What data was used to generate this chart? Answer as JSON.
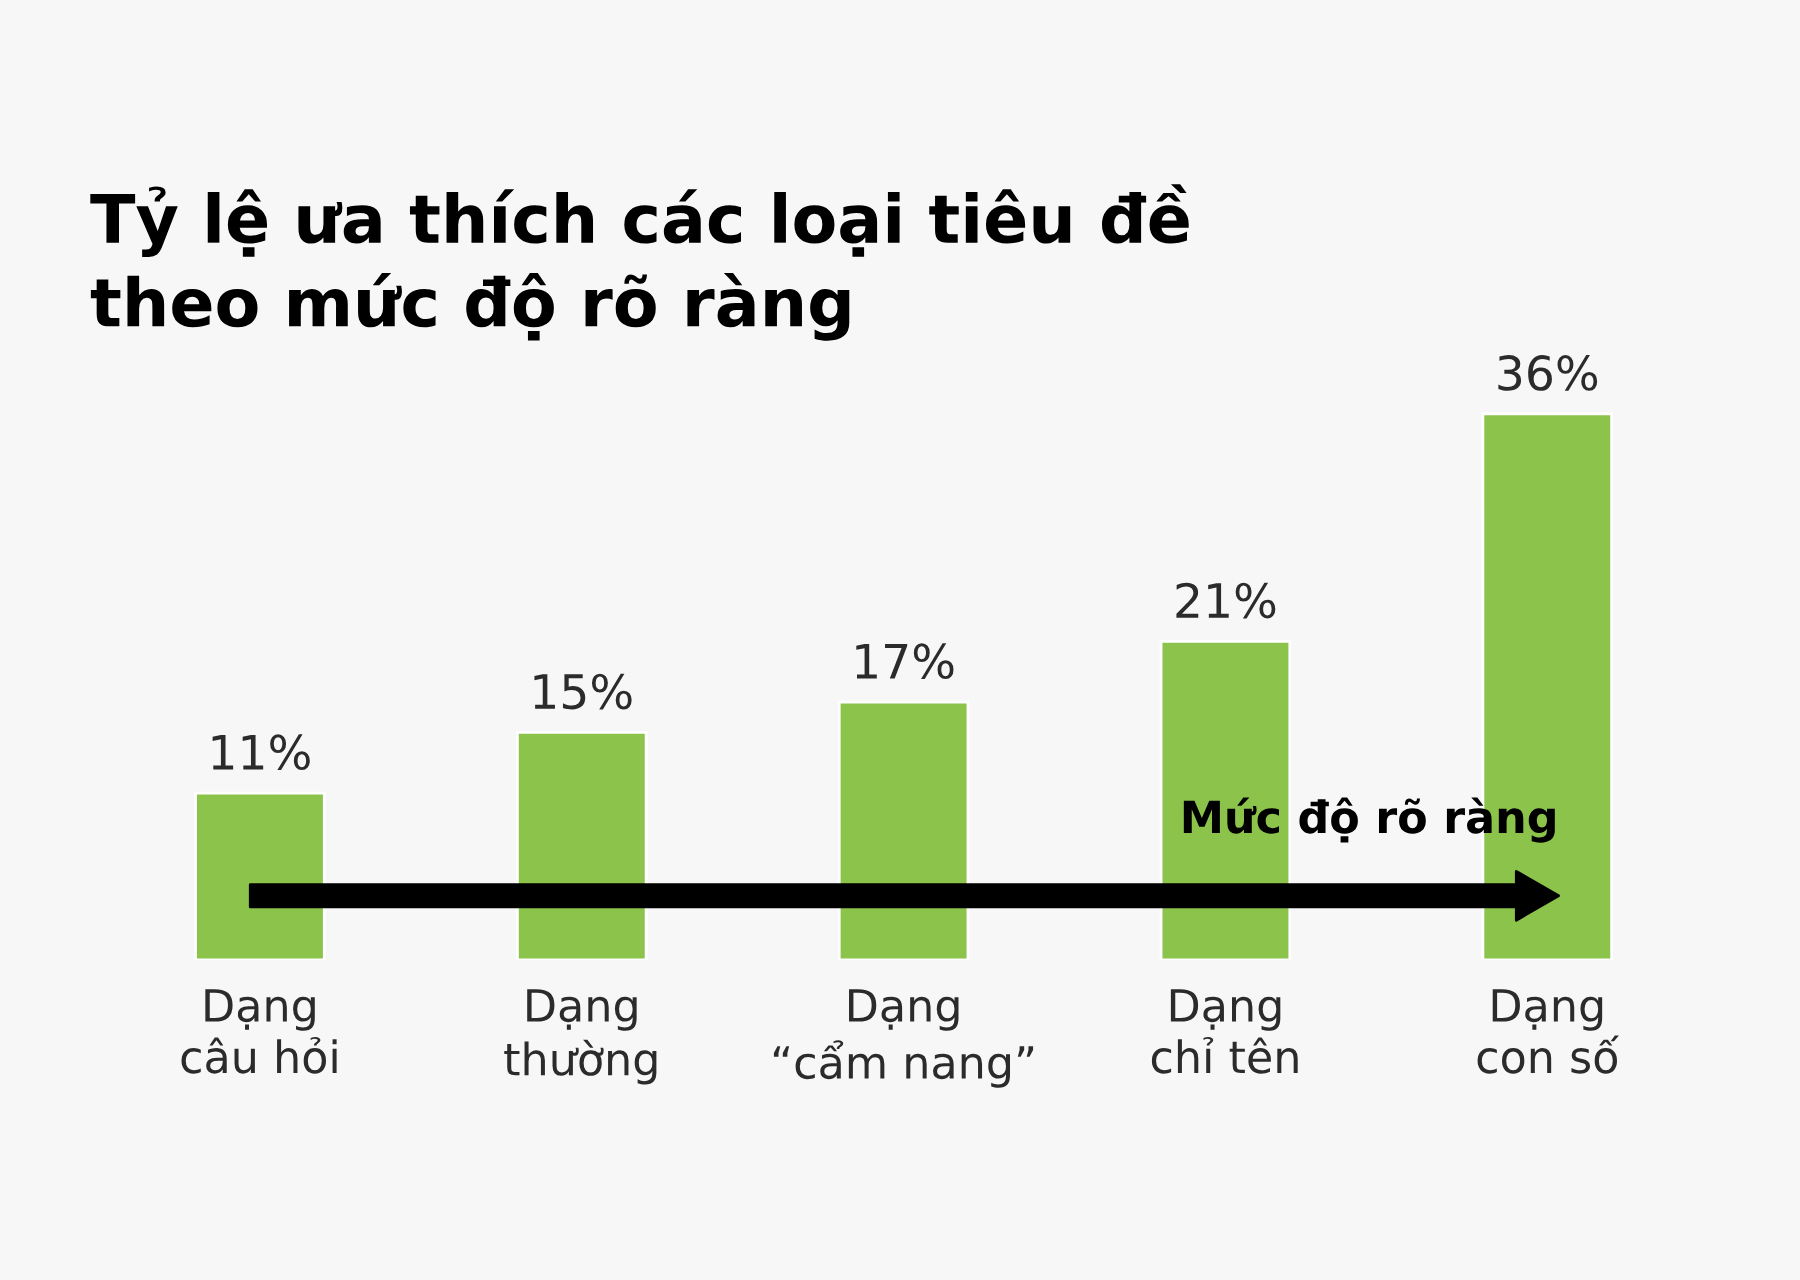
{
  "chart_data": {
    "type": "bar",
    "title": "Tỷ lệ ưa thích các loại tiêu đề\ntheo mức độ rõ ràng",
    "categories": [
      "Dạng\ncâu hỏi",
      "Dạng\nthường",
      "Dạng\n“cẩm nang”",
      "Dạng\nchỉ tên",
      "Dạng\ncon số"
    ],
    "values": [
      11,
      15,
      17,
      21,
      36
    ],
    "value_labels": [
      "11%",
      "15%",
      "17%",
      "21%",
      "36%"
    ],
    "color": "#8cc34b",
    "annotations": [
      "Mức độ rõ ràng"
    ],
    "tick_labels": "x",
    "grid": false
  }
}
